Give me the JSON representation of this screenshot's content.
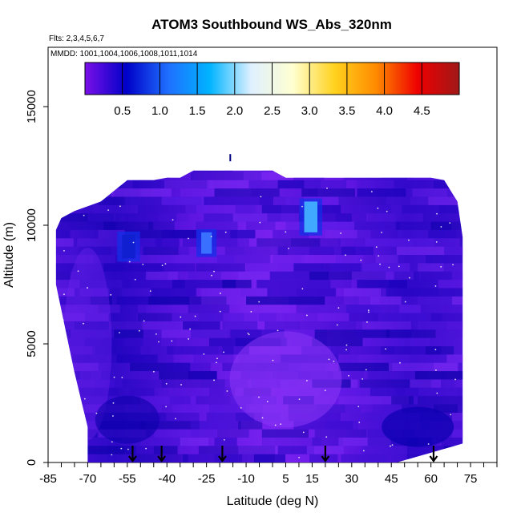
{
  "chart_data": {
    "type": "heatmap",
    "title": "ATOM3 Southbound WS_Abs_320nm",
    "flights_note": "Flts: 2,3,4,5,6,7",
    "dates_note": "MMDD: 1001,1004,1006,1008,1011,1014",
    "xlabel": "Latitude (deg N)",
    "ylabel": "Altitude (m)",
    "xlim": [
      -85,
      85
    ],
    "ylim": [
      0,
      17500
    ],
    "x_ticks_major": [
      -85,
      -70,
      -55,
      -40,
      -25,
      -10,
      5,
      15,
      30,
      45,
      60,
      75
    ],
    "x_ticks_minor_step": 5,
    "y_ticks": [
      0,
      5000,
      10000,
      15000
    ],
    "colorbar": {
      "range": [
        0,
        5
      ],
      "ticks": [
        "0.5",
        "1.0",
        "1.5",
        "2.0",
        "2.5",
        "3.0",
        "3.5",
        "4.0",
        "4.5"
      ],
      "colors": [
        "#7a10e8",
        "#0000c8",
        "#1f6fff",
        "#00b4ff",
        "#dff0ff",
        "#ffffd0",
        "#ffd21e",
        "#ff8a00",
        "#ee0000",
        "#a01818"
      ]
    },
    "arrows_latitude": [
      -53,
      -42,
      -19,
      20,
      61
    ],
    "domain_outline": {
      "x": [
        -70,
        -70,
        -75,
        -82,
        -82,
        -80,
        -75,
        -65,
        -55,
        -45,
        -40,
        -35,
        -30,
        -25,
        -20,
        -15,
        -10,
        -5,
        0,
        5,
        10,
        15,
        20,
        25,
        30,
        35,
        40,
        45,
        50,
        55,
        60,
        65,
        70,
        72,
        72
      ],
      "y_top": [
        400,
        1500,
        3800,
        7500,
        9800,
        10300,
        10600,
        11000,
        11900,
        11900,
        12000,
        12000,
        12300,
        12300,
        12300,
        12300,
        12300,
        12300,
        12300,
        12000,
        12000,
        12000,
        12000,
        12000,
        12000,
        12000,
        12000,
        12000,
        12000,
        12000,
        12000,
        11900,
        11000,
        9500,
        3500
      ]
    },
    "features": [
      {
        "name": "high_value_patch",
        "lat_range": [
          12,
          17
        ],
        "alt_range": [
          9700,
          11000
        ],
        "value": 2.0
      },
      {
        "name": "high_value_patch",
        "lat_range": [
          -27,
          -23
        ],
        "alt_range": [
          8800,
          9700
        ],
        "value": 1.3
      },
      {
        "name": "high_value_patch",
        "lat_range": [
          -57,
          -52
        ],
        "alt_range": [
          8600,
          9600
        ],
        "value": 0.9
      }
    ]
  }
}
